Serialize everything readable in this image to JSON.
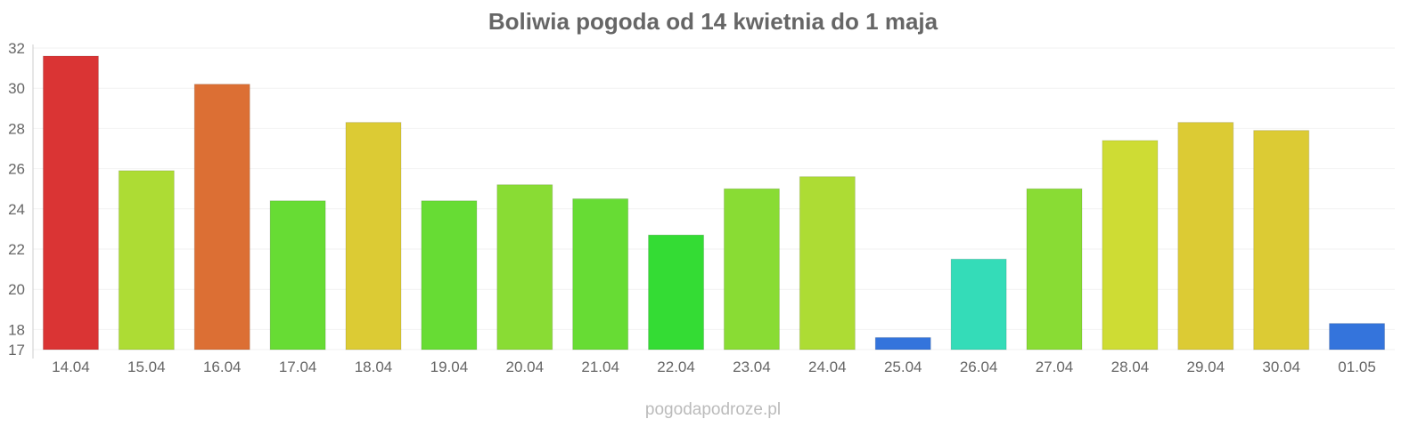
{
  "chart_data": {
    "type": "bar",
    "title": "Boliwia pogoda od 14 kwietnia do 1 maja",
    "xlabel": "",
    "ylabel": "",
    "ylim": [
      17,
      32
    ],
    "yticks": [
      17,
      18,
      20,
      22,
      24,
      26,
      28,
      30,
      32
    ],
    "grid": true,
    "categories": [
      "14.04",
      "15.04",
      "16.04",
      "17.04",
      "18.04",
      "19.04",
      "20.04",
      "21.04",
      "22.04",
      "23.04",
      "24.04",
      "25.04",
      "26.04",
      "27.04",
      "28.04",
      "29.04",
      "30.04",
      "01.05"
    ],
    "values": [
      31.6,
      25.9,
      30.2,
      24.4,
      28.3,
      24.4,
      25.2,
      24.5,
      22.7,
      25.0,
      25.6,
      17.6,
      21.5,
      25.0,
      27.4,
      28.3,
      27.9,
      18.3
    ],
    "colors": [
      "#da3434",
      "#addc34",
      "#dc6f34",
      "#67dc34",
      "#dccb34",
      "#67dc34",
      "#89dc34",
      "#67dc34",
      "#34dc34",
      "#89dc34",
      "#addc34",
      "#3474dc",
      "#34dcb8",
      "#89dc34",
      "#cedc34",
      "#dccb34",
      "#dccb34",
      "#3474dc"
    ]
  },
  "watermark": "pogodapodroze.pl"
}
